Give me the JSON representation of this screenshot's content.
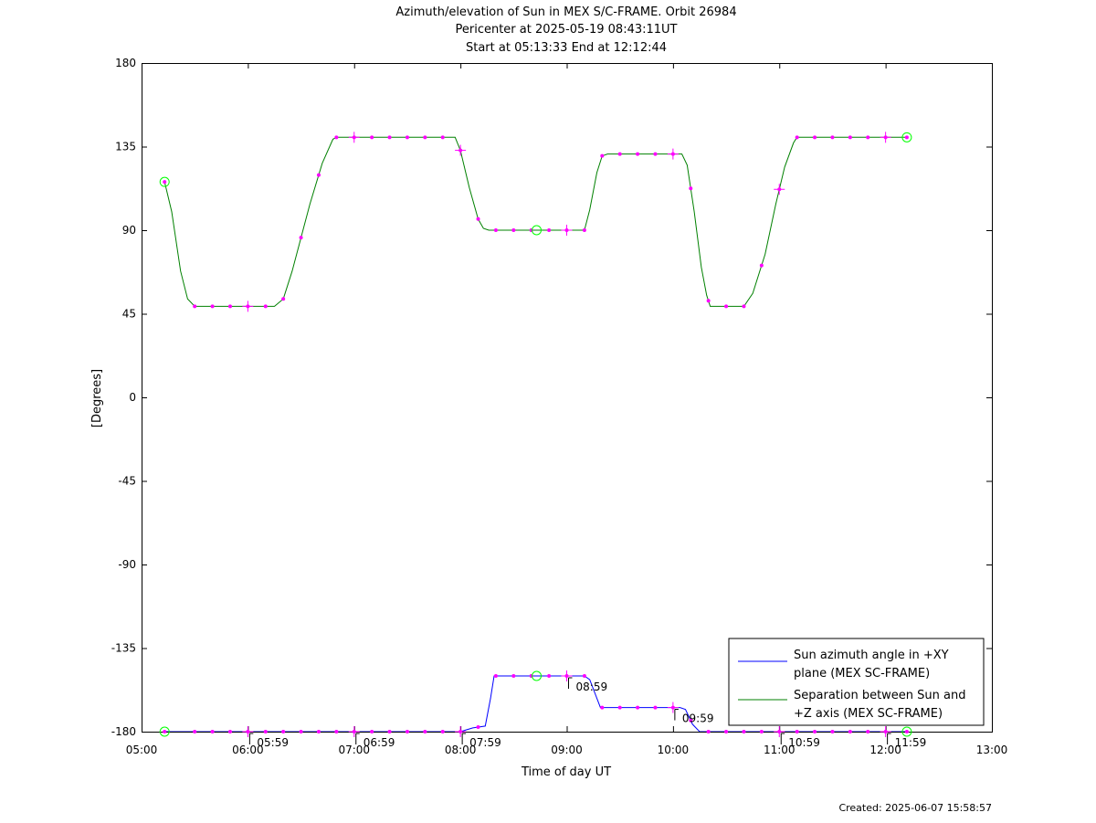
{
  "chart_data": {
    "type": "line",
    "title_lines": [
      "Azimuth/elevation of Sun in MEX S/C-FRAME.  Orbit 26984",
      "Pericenter at 2025-05-19 08:43:11UT",
      "Start at 05:13:33 End at 12:12:44"
    ],
    "xlabel": "Time of day UT",
    "ylabel": "[Degrees]",
    "x_range": [
      "05:00",
      "13:00"
    ],
    "ylim": [
      -180,
      180
    ],
    "x_ticks": [
      "05:00",
      "06:00",
      "07:00",
      "08:00",
      "09:00",
      "10:00",
      "11:00",
      "12:00",
      "13:00"
    ],
    "y_ticks": [
      180,
      135,
      90,
      45,
      0,
      -45,
      -90,
      -135,
      -180
    ],
    "grid": false,
    "legend_position": "bottom-right",
    "colors": {
      "azimuth": "#0000ff",
      "separation": "#008000",
      "markers": "#ff00ff",
      "endpoints": "#00ff00"
    },
    "series": [
      {
        "name": "Sun azimuth angle in +XY plane (MEX SC-FRAME)",
        "legend_lines": [
          "Sun azimuth angle in +XY",
          "plane (MEX SC-FRAME)"
        ],
        "color": "#0000ff",
        "points": [
          [
            "05:13",
            -180
          ],
          [
            "08:00",
            -180
          ],
          [
            "08:07",
            -178
          ],
          [
            "08:14",
            -177
          ],
          [
            "08:17",
            -162
          ],
          [
            "08:19",
            -150
          ],
          [
            "09:10",
            -150
          ],
          [
            "09:13",
            -152
          ],
          [
            "09:19",
            -167
          ],
          [
            "10:04",
            -167
          ],
          [
            "10:07",
            -168
          ],
          [
            "10:11",
            -176
          ],
          [
            "10:15",
            -180
          ],
          [
            "12:12",
            -180
          ]
        ]
      },
      {
        "name": "Separation between Sun and +Z axis (MEX SC-FRAME)",
        "legend_lines": [
          "Separation between Sun and",
          "+Z axis (MEX SC-FRAME)"
        ],
        "color": "#008000",
        "points": [
          [
            "05:13",
            116
          ],
          [
            "05:17",
            100
          ],
          [
            "05:22",
            68
          ],
          [
            "05:26",
            53
          ],
          [
            "05:30",
            49
          ],
          [
            "06:15",
            49
          ],
          [
            "06:20",
            53
          ],
          [
            "06:25",
            68
          ],
          [
            "06:35",
            104
          ],
          [
            "06:42",
            126
          ],
          [
            "06:48",
            139
          ],
          [
            "06:50",
            140
          ],
          [
            "07:57",
            140
          ],
          [
            "08:00",
            133
          ],
          [
            "08:05",
            113
          ],
          [
            "08:10",
            96
          ],
          [
            "08:13",
            91
          ],
          [
            "08:16",
            90
          ],
          [
            "09:10",
            90
          ],
          [
            "09:13",
            101
          ],
          [
            "09:17",
            121
          ],
          [
            "09:20",
            130
          ],
          [
            "09:23",
            131
          ],
          [
            "10:05",
            131
          ],
          [
            "10:08",
            125
          ],
          [
            "10:12",
            100
          ],
          [
            "10:16",
            70
          ],
          [
            "10:19",
            55
          ],
          [
            "10:21",
            49
          ],
          [
            "10:40",
            49
          ],
          [
            "10:45",
            56
          ],
          [
            "10:52",
            77
          ],
          [
            "10:58",
            104
          ],
          [
            "11:03",
            124
          ],
          [
            "11:08",
            137
          ],
          [
            "11:10",
            140
          ],
          [
            "12:12",
            140
          ]
        ]
      }
    ],
    "dot_markers": {
      "times": [
        "05:13",
        "05:30",
        "05:40",
        "05:50",
        "06:00",
        "06:10",
        "06:20",
        "06:30",
        "06:40",
        "06:50",
        "07:00",
        "07:10",
        "07:20",
        "07:30",
        "07:40",
        "07:50",
        "08:00",
        "08:10",
        "08:20",
        "08:30",
        "08:40",
        "08:50",
        "09:00",
        "09:10",
        "09:20",
        "09:30",
        "09:40",
        "09:50",
        "10:00",
        "10:10",
        "10:20",
        "10:30",
        "10:40",
        "10:50",
        "11:00",
        "11:10",
        "11:20",
        "11:30",
        "11:40",
        "11:50",
        "12:00",
        "12:12"
      ]
    },
    "cross_markers": {
      "times": [
        "06:00",
        "07:00",
        "08:00",
        "09:00",
        "10:00",
        "11:00",
        "12:00"
      ]
    },
    "circle_markers": {
      "times": [
        "05:13",
        "08:43",
        "12:12"
      ]
    },
    "annotations": [
      {
        "time": "06:00",
        "text": "05:59"
      },
      {
        "time": "07:00",
        "text": "06:59"
      },
      {
        "time": "08:00",
        "text": "07:59"
      },
      {
        "time": "09:00",
        "text": "08:59"
      },
      {
        "time": "10:00",
        "text": "09:59"
      },
      {
        "time": "11:00",
        "text": "10:59"
      },
      {
        "time": "12:00",
        "text": "11:59"
      }
    ]
  },
  "footer": {
    "created": "Created: 2025-06-07 15:58:57"
  }
}
